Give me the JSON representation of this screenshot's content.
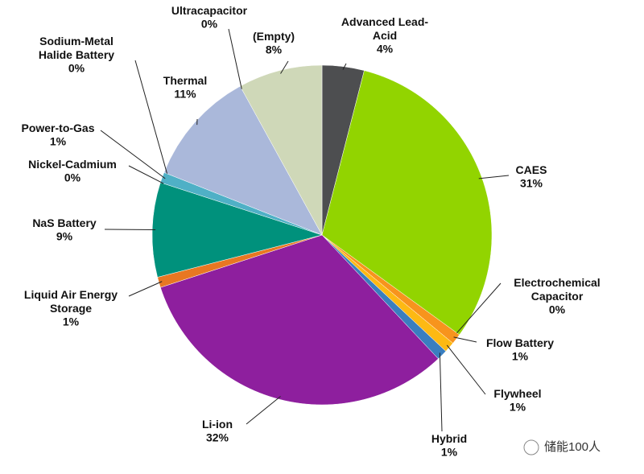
{
  "chart_data": {
    "type": "pie",
    "categories": [
      "Advanced Lead-\nAcid",
      "CAES",
      "Electrochemical\nCapacitor",
      "Flow Battery",
      "Flywheel",
      "Hybrid",
      "Li-ion",
      "Liquid Air Energy\nStorage",
      "NaS Battery",
      "Nickel-Cadmium",
      "Power-to-Gas",
      "Sodium-Metal\nHalide Battery",
      "Thermal",
      "Ultracapacitor",
      "(Empty)"
    ],
    "values": [
      4,
      31,
      0,
      1,
      1,
      1,
      32,
      1,
      9,
      0,
      1,
      0,
      11,
      0,
      8
    ],
    "value_labels": [
      "4%",
      "31%",
      "0%",
      "1%",
      "1%",
      "1%",
      "32%",
      "1%",
      "9%",
      "0%",
      "1%",
      "0%",
      "11%",
      "0%",
      "8%"
    ],
    "colors": [
      "#4d4e50",
      "#92d400",
      "#e63f26",
      "#f7941d",
      "#fdb913",
      "#3a7ebf",
      "#8e1f9e",
      "#e87722",
      "#00917c",
      "#c0504d",
      "#4fb0c6",
      "#f7941d",
      "#aab8da",
      "#9bbb59",
      "#cfd8b8"
    ]
  },
  "watermark": "储能100人"
}
